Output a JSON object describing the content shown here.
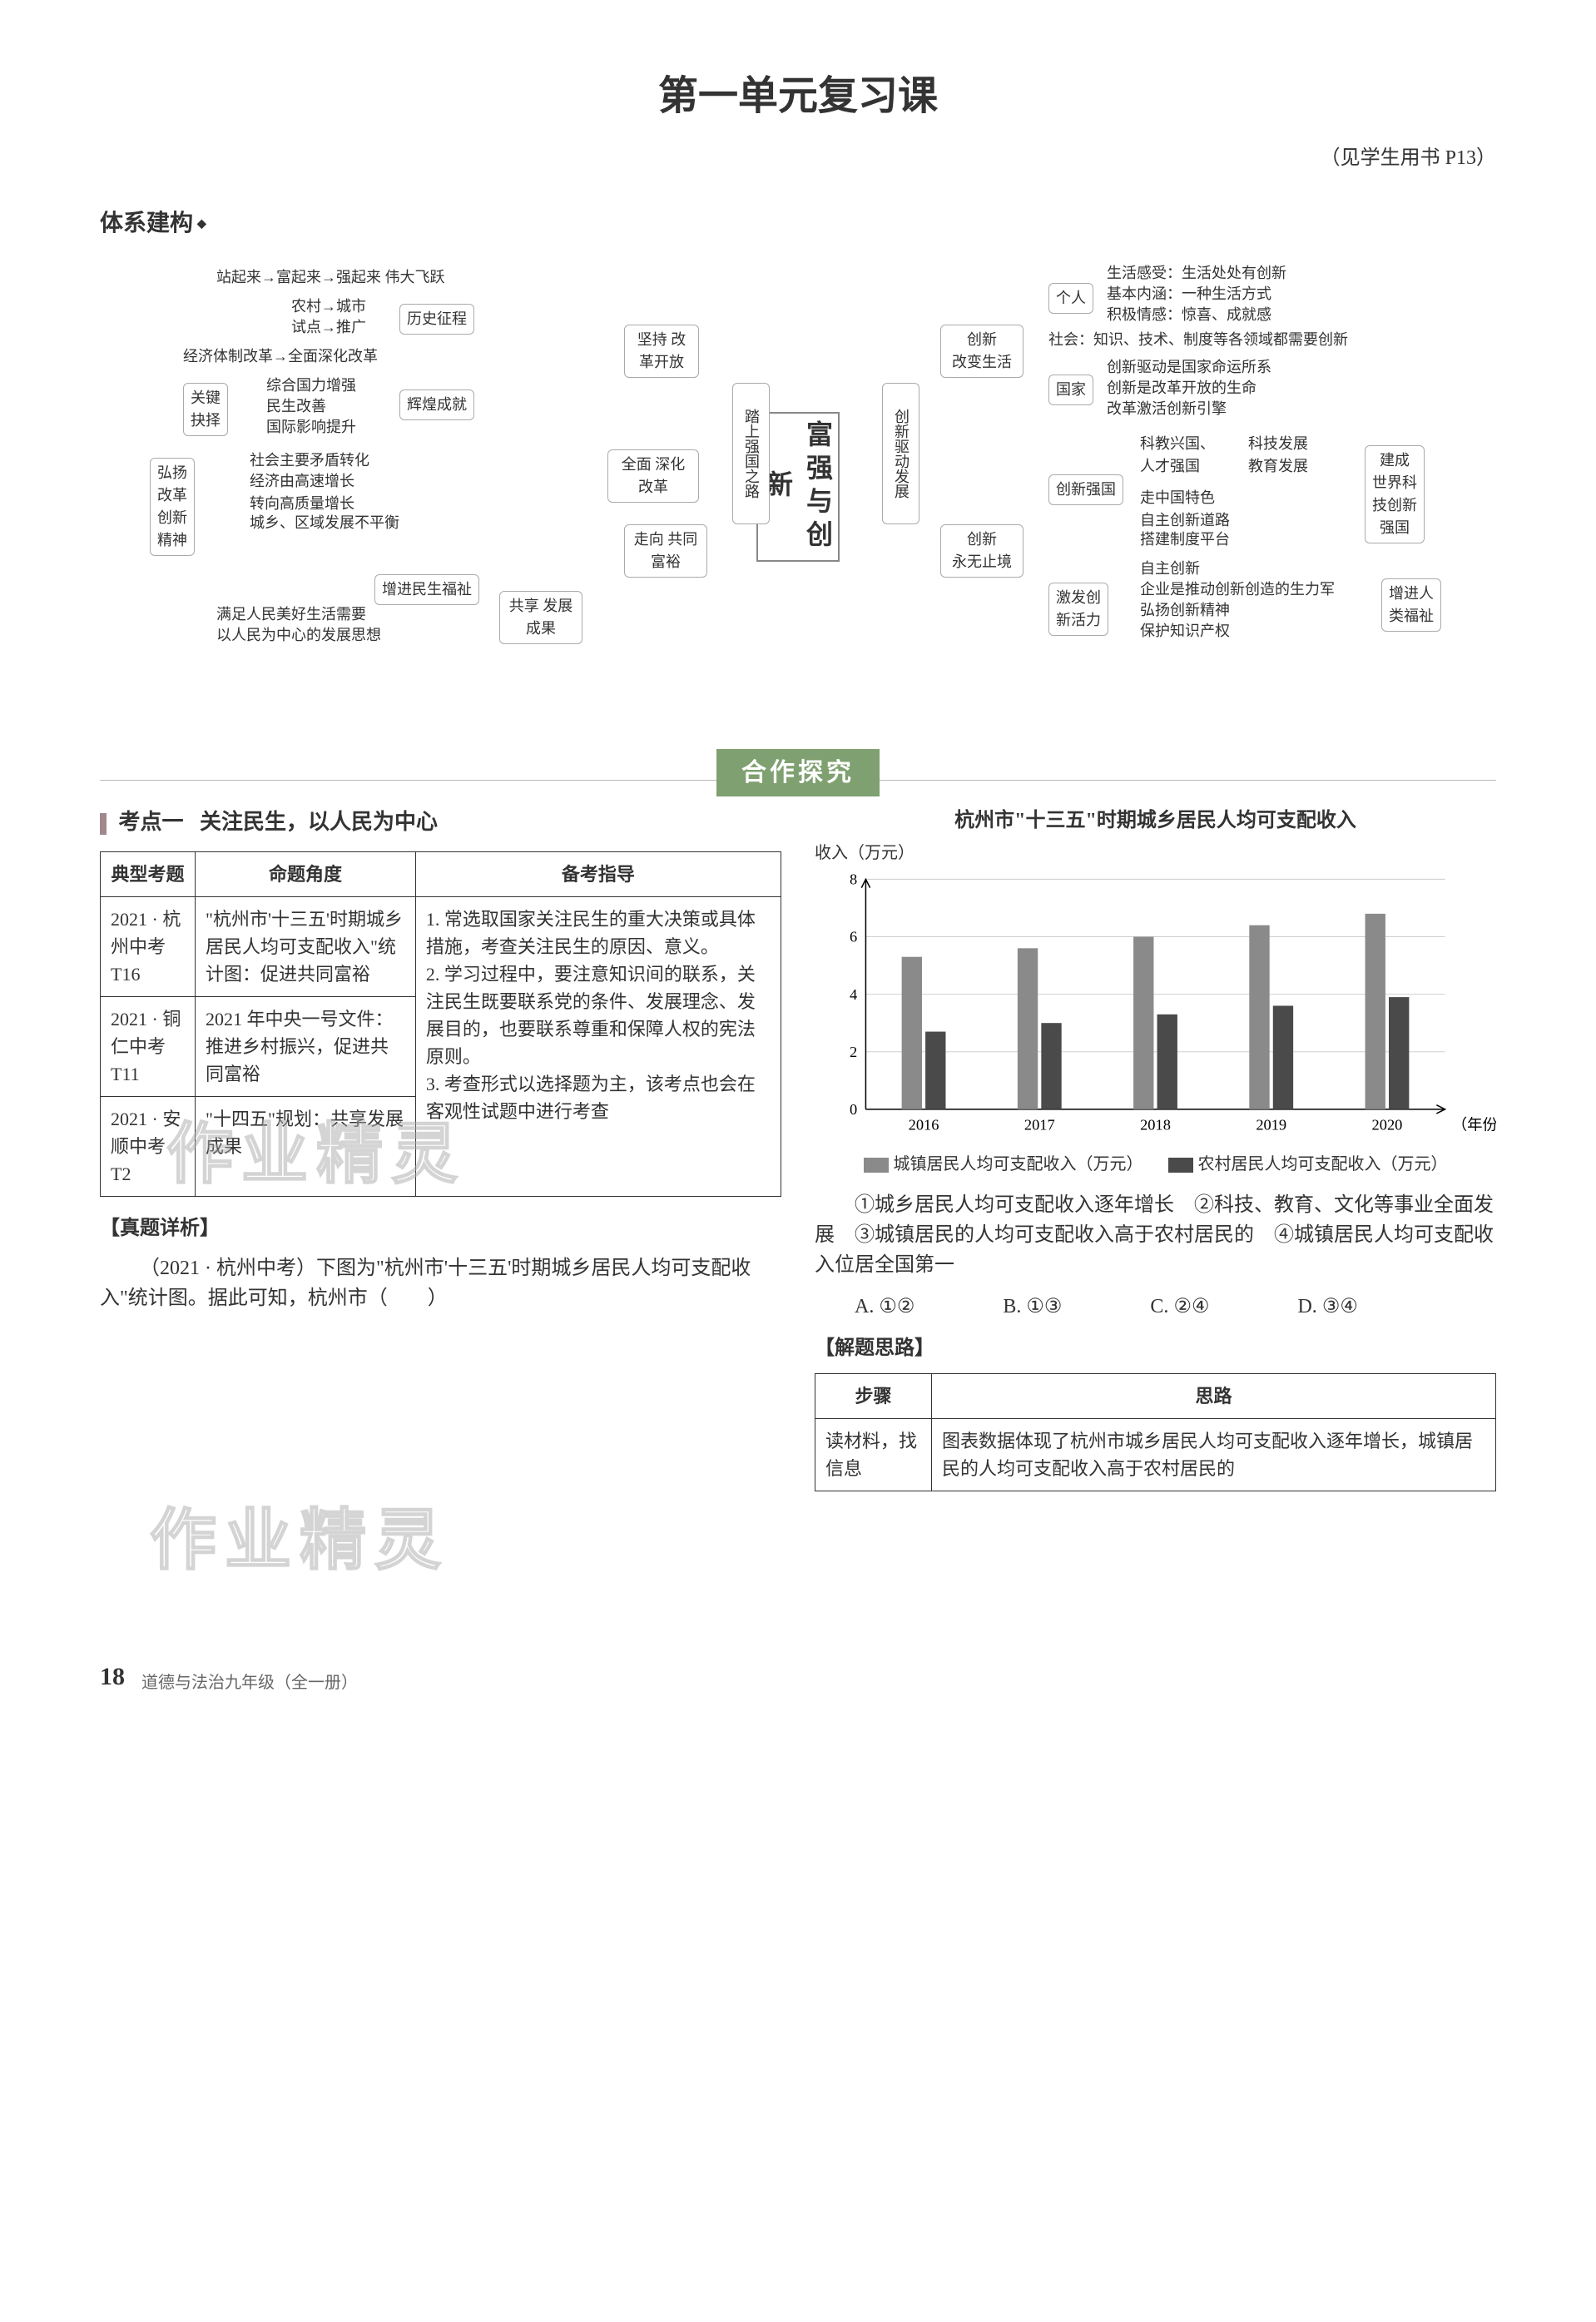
{
  "title": "第一单元复习课",
  "subref": "（见学生用书 P13）",
  "section_system": "体系建构",
  "mindmap": {
    "center": "富强与创新",
    "left": {
      "pillar_top": "坚持\n改革开放",
      "pillar_mid": "踏上强国之路",
      "pillar_mid2": "全面\n深化改革",
      "pillar_bot": "走向\n共同富裕",
      "pillar_bot2": "共享\n发展成果",
      "top_arrow": "站起来→富起来→强起来  伟大飞跃",
      "lishi_heading": "历史征程",
      "lishi1": "农村→城市",
      "lishi2": "试点→推广",
      "jingji": "经济体制改革→全面深化改革",
      "guanjian": "关键\n抉择",
      "huihuang_heading": "辉煌成就",
      "huihuang1": "综合国力增强",
      "huihuang2": "民生改善",
      "huihuang3": "国际影响提升",
      "hongyang": "弘扬\n改革\n创新\n精神",
      "shehui1": "社会主要矛盾转化",
      "shehui2": "经济由高速增长\n转向高质量增长",
      "shehui3": "城乡、区域发展不平衡",
      "minsheng_heading": "增进民生福祉",
      "minsheng1": "满足人民美好生活需要",
      "minsheng2": "以人民为中心的发展思想"
    },
    "right": {
      "pillar_top": "创新驱动发展",
      "pillar_mid1": "创新\n改变生活",
      "pillar_mid2": "创新\n永无止境",
      "geren_heading": "个人",
      "geren1": "生活感受：生活处处有创新",
      "geren2": "基本内涵：一种生活方式",
      "geren3": "积极情感：惊喜、成就感",
      "shehui": "社会：知识、技术、制度等各领域都需要创新",
      "guojia_heading": "国家",
      "guojia1": "创新驱动是国家命运所系",
      "guojia2": "创新是改革开放的生命",
      "guojia3": "改革激活创新引擎",
      "qiangguo_heading": "创新强国",
      "qiangguo_a1": "科教兴国、\n人才强国",
      "qiangguo_a2": "科技发展\n教育发展",
      "qiangguo_b1": "走中国特色\n自主创新道路",
      "qiangguo_b2": "搭建制度平台",
      "jiancheng": "建成\n世界科\n技创新\n强国",
      "huoli_heading": "激发创\n新活力",
      "huoli1": "自主创新",
      "huoli2": "企业是推动创新创造的生力军",
      "huoli3": "弘扬创新精神",
      "huoli4": "保护知识产权",
      "zengjin": "增进人\n类福祉"
    }
  },
  "coop_label": "合作探究",
  "kaopoint1": {
    "tag": "考点一",
    "title": "关注民生，以人民为中心",
    "table": {
      "headers": [
        "典型考题",
        "命题角度",
        "备考指导"
      ],
      "rows": [
        [
          "2021 · 杭州中考 T16",
          "\"杭州市'十三五'时期城乡居民人均可支配收入\"统计图：促进共同富裕",
          ""
        ],
        [
          "2021 · 铜仁中考 T11",
          "2021 年中央一号文件：推进乡村振兴，促进共同富裕",
          ""
        ],
        [
          "2021 · 安顺中考 T2",
          "\"十四五\"规划：共享发展成果",
          ""
        ]
      ],
      "guide": "1. 常选取国家关注民生的重大决策或具体措施，考查关注民生的原因、意义。\n2. 学习过程中，要注意知识间的联系，关注民生既要联系党的条件、发展理念、发展目的，也要联系尊重和保障人权的宪法原则。\n3. 考查形式以选择题为主，该考点也会在客观性试题中进行考查"
    }
  },
  "zhenti_label": "【真题详析】",
  "zhenti_text": "（2021 · 杭州中考）下图为\"杭州市'十三五'时期城乡居民人均可支配收入\"统计图。据此可知，杭州市（　　）",
  "chart": {
    "title": "杭州市\"十三五\"时期城乡居民人均可支配收入",
    "ylabel": "收入（万元）",
    "xlabel": "（年份）",
    "years": [
      "2016",
      "2017",
      "2018",
      "2019",
      "2020"
    ],
    "series_urban": {
      "label": "城镇居民人均可支配收入（万元）",
      "color": "#8a8a8a",
      "values": [
        5.3,
        5.6,
        6.0,
        6.4,
        6.8
      ]
    },
    "series_rural": {
      "label": "农村居民人均可支配收入（万元）",
      "color": "#4a4a4a",
      "values": [
        2.7,
        3.0,
        3.3,
        3.6,
        3.9
      ]
    },
    "ylim": [
      0,
      8
    ],
    "ytick": 2,
    "bg": "#ffffff",
    "grid": "#d0d0d0",
    "axis": "#000000",
    "bar_width": 0.35
  },
  "choices_text": "①城乡居民人均可支配收入逐年增长　②科技、教育、文化等事业全面发展　③城镇居民的人均可支配收入高于农村居民的　④城镇居民人均可支配收入位居全国第一",
  "options": {
    "A": "①②",
    "B": "①③",
    "C": "②④",
    "D": "③④"
  },
  "silu_label": "【解题思路】",
  "step_table": {
    "headers": [
      "步骤",
      "思路"
    ],
    "rows": [
      [
        "读材料，找信息",
        "图表数据体现了杭州市城乡居民人均可支配收入逐年增长，城镇居民的人均可支配收入高于农村居民的"
      ]
    ]
  },
  "watermark1": "作业精灵",
  "watermark2": "作业精灵",
  "page_number": "18",
  "footer_text": "道德与法治九年级（全一册）"
}
